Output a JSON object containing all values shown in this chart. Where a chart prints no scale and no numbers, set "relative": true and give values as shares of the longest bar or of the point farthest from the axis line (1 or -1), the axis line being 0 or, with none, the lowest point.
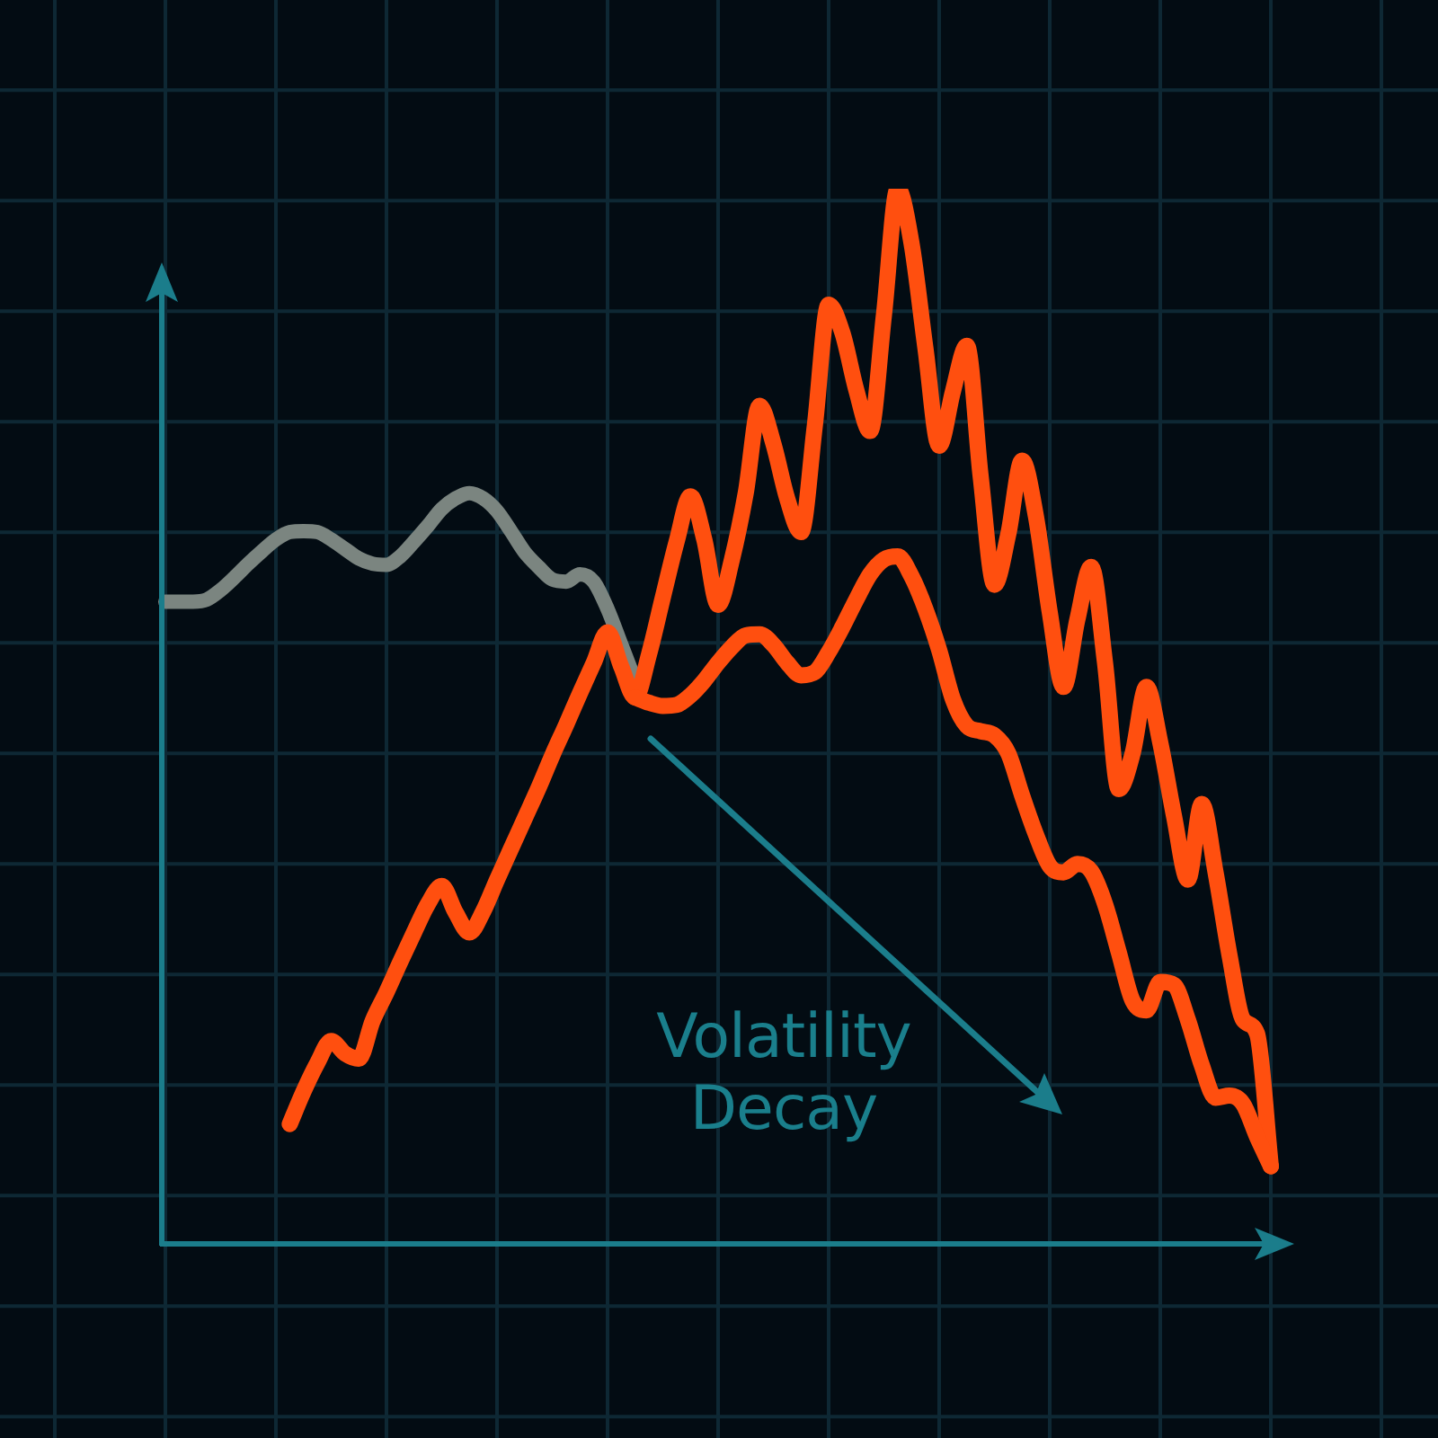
{
  "chart_data": {
    "type": "line",
    "relative": true,
    "grid": true,
    "marker": "none",
    "categories": [
      null,
      null,
      null,
      null,
      null,
      null,
      null,
      null,
      null,
      null,
      null,
      null,
      null,
      null,
      null,
      null,
      null,
      null,
      null,
      null,
      null,
      null,
      null,
      null,
      null,
      null,
      null,
      null,
      null,
      null,
      null,
      null,
      null,
      null,
      null,
      null,
      null,
      null,
      null,
      null,
      null,
      null,
      null,
      null,
      null,
      null,
      null,
      null,
      null,
      null,
      null,
      null,
      null,
      null,
      null,
      null,
      null,
      null,
      null,
      null,
      null,
      null,
      null,
      null,
      null,
      null,
      null,
      null,
      null,
      null,
      null,
      null,
      null,
      null,
      null,
      null,
      null,
      null,
      null,
      null,
      null
    ],
    "series": [
      {
        "color": "#7b8580",
        "values": [
          0.608,
          0.608,
          0.608,
          0.61,
          0.619,
          0.631,
          0.644,
          0.656,
          0.667,
          0.674,
          0.675,
          0.674,
          0.667,
          0.658,
          0.649,
          0.644,
          0.643,
          0.651,
          0.665,
          0.68,
          0.696,
          0.706,
          0.711,
          0.706,
          0.694,
          0.675,
          0.655,
          0.641,
          0.629,
          0.627,
          0.634,
          0.627,
          0.601,
          0.567,
          0.533,
          null,
          null,
          null,
          null,
          null,
          null,
          null,
          null,
          null,
          null,
          null,
          null,
          null,
          null,
          null,
          null,
          null,
          null,
          null,
          null,
          null,
          null,
          null,
          null,
          null,
          null,
          null,
          null,
          null,
          null,
          null,
          null,
          null,
          null,
          null,
          null,
          null,
          null,
          null,
          null,
          null,
          null,
          null,
          null,
          null,
          null
        ]
      },
      {
        "color": "#ff4f0f",
        "values": [
          null,
          null,
          null,
          null,
          null,
          null,
          null,
          null,
          null,
          0.112,
          0.143,
          0.17,
          0.191,
          0.179,
          0.174,
          0.21,
          0.237,
          0.266,
          0.294,
          0.321,
          0.338,
          0.313,
          0.294,
          0.314,
          0.344,
          0.373,
          0.402,
          0.431,
          0.462,
          0.491,
          0.521,
          0.55,
          0.579,
          0.546,
          0.517,
          0.558,
          0.612,
          0.665,
          0.708,
          0.667,
          0.605,
          0.648,
          0.711,
          0.794,
          0.758,
          0.706,
          0.674,
          0.775,
          0.89,
          0.863,
          0.809,
          0.77,
          0.88,
          1,
          0.948,
          0.849,
          0.756,
          0.808,
          0.851,
          0.727,
          0.624,
          0.672,
          0.742,
          0.689,
          0.598,
          0.527,
          0.591,
          0.641,
          0.55,
          0.43,
          0.464,
          0.527,
          0.474,
          0.404,
          0.344,
          0.416,
          0.351,
          0.273,
          0.211,
          0.198,
          0.072
        ]
      },
      {
        "color": "#ff4f0f",
        "values": [
          null,
          null,
          null,
          null,
          null,
          null,
          null,
          null,
          null,
          null,
          null,
          null,
          null,
          null,
          null,
          null,
          null,
          null,
          null,
          null,
          null,
          null,
          null,
          null,
          null,
          null,
          null,
          null,
          null,
          null,
          null,
          null,
          null,
          null,
          0.517,
          0.512,
          0.509,
          0.51,
          0.519,
          0.533,
          0.55,
          0.565,
          0.576,
          0.577,
          0.567,
          0.55,
          0.538,
          0.541,
          0.56,
          0.584,
          0.61,
          0.634,
          0.648,
          0.651,
          0.632,
          0.601,
          0.562,
          0.515,
          0.49,
          0.485,
          0.481,
          0.464,
          0.424,
          0.387,
          0.357,
          0.351,
          0.359,
          0.352,
          0.321,
          0.275,
          0.229,
          0.22,
          0.247,
          0.244,
          0.211,
          0.168,
          0.137,
          0.139,
          0.131,
          0.1,
          0.072
        ]
      }
    ],
    "annotations": [
      "Volatility Decay"
    ]
  }
}
